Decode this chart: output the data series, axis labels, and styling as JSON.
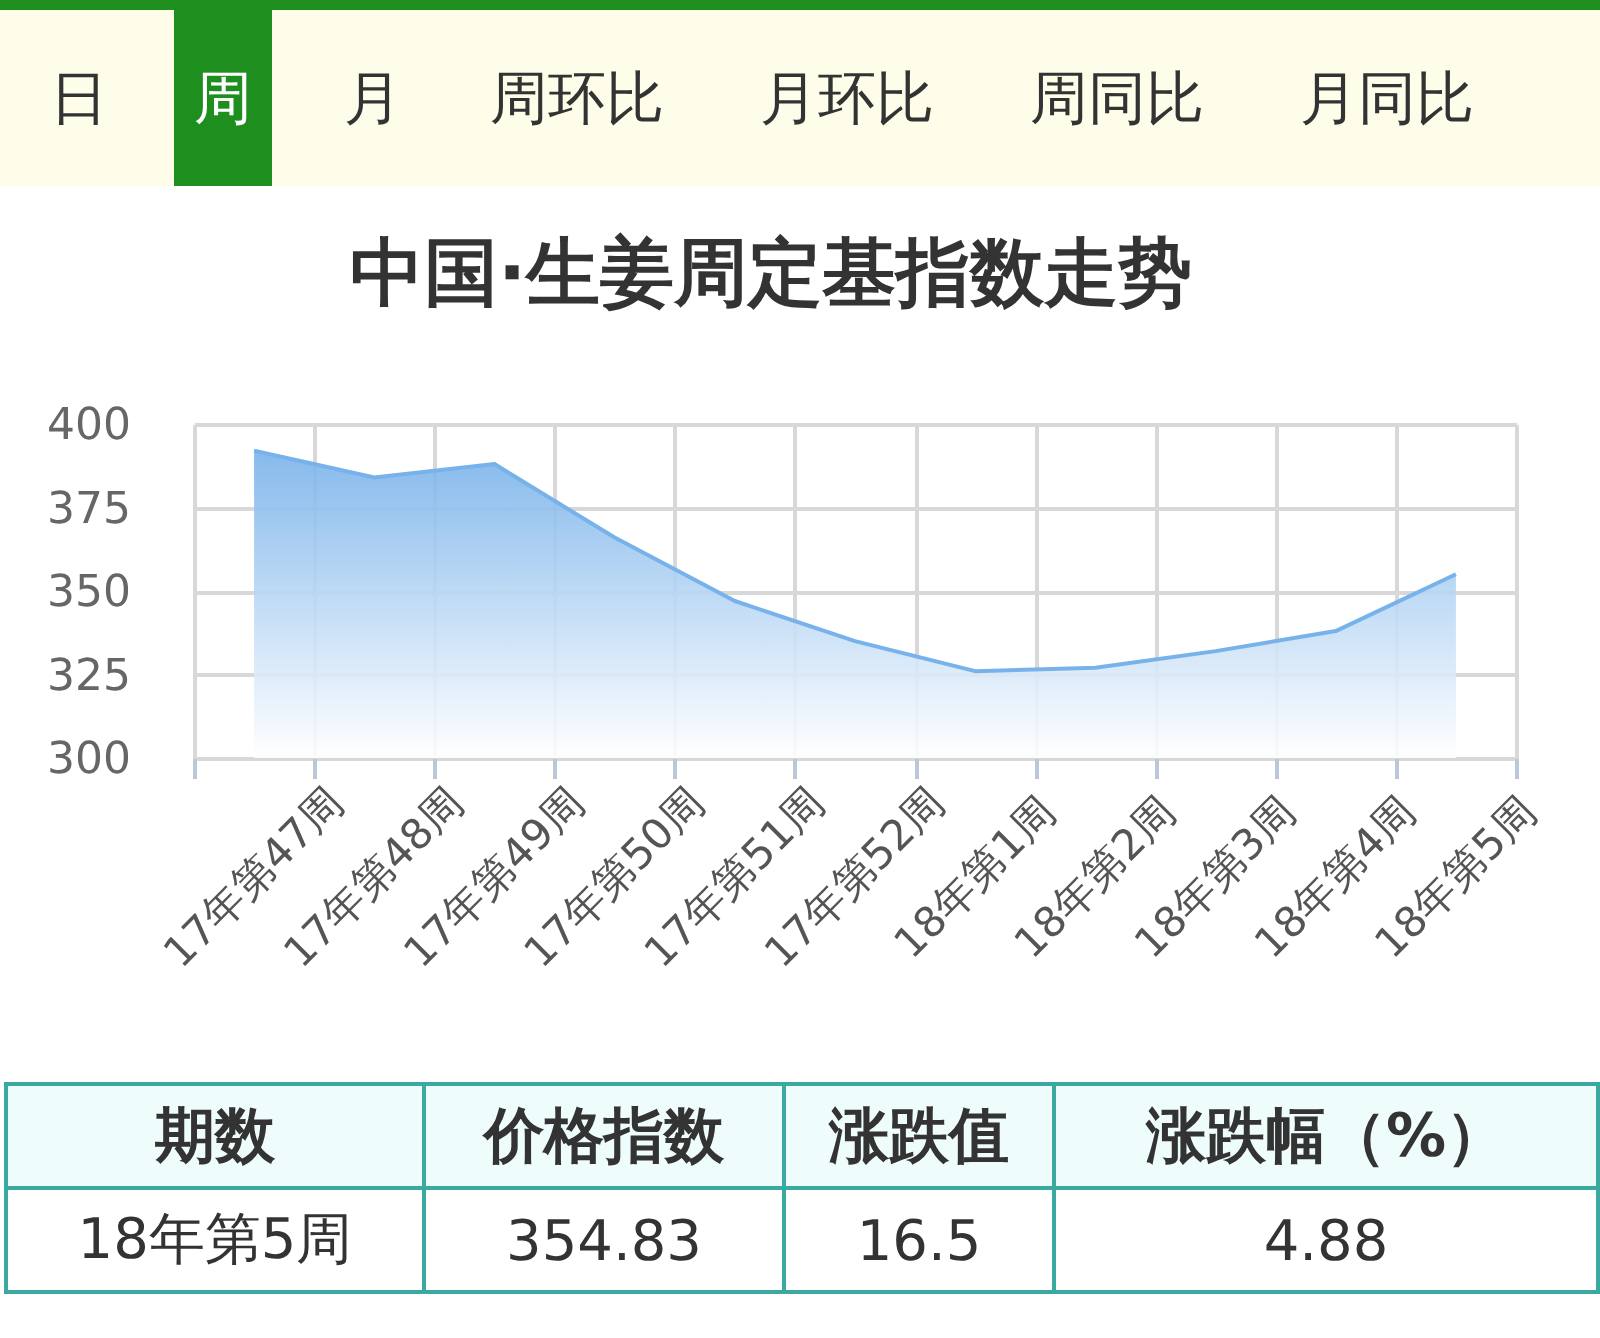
{
  "chart_data": {
    "type": "area",
    "title": "中国·生姜周定基指数走势",
    "categories": [
      "17年第47周",
      "17年第48周",
      "17年第49周",
      "17年第50周",
      "17年第51周",
      "17年第52周",
      "18年第1周",
      "18年第2周",
      "18年第3周",
      "18年第4周",
      "18年第5周"
    ],
    "values": [
      392,
      384,
      388,
      366,
      347,
      335,
      326,
      327,
      332,
      338,
      355
    ],
    "color": "#78b2ea",
    "ylim": [
      300,
      400
    ],
    "yticks": [
      300,
      325,
      350,
      375,
      400
    ],
    "grid": true,
    "annotations": [
      "日",
      "周",
      "月",
      "周环比",
      "月环比",
      "周同比",
      "月同比",
      "期数",
      "价格指数",
      "涨跌值",
      "涨跌幅（%）",
      "18年第5周",
      "354.83",
      "16.5",
      "4.88"
    ]
  }
}
